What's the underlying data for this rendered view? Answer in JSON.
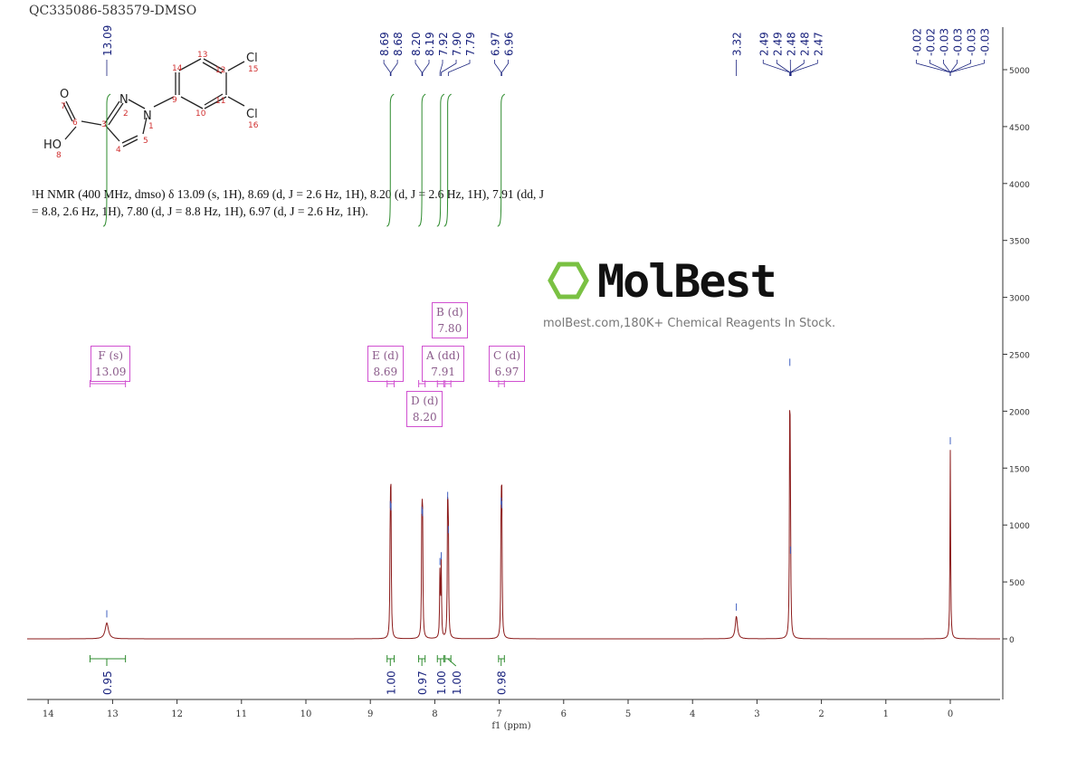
{
  "title": "QC335086-583579-DMSO",
  "description_line1": "¹H NMR (400 MHz, dmso) δ 13.09 (s, 1H), 8.69 (d, J = 2.6 Hz, 1H), 8.20 (d, J = 2.6 Hz, 1H), 7.91 (dd, J",
  "description_line2": "= 8.8, 2.6 Hz, 1H), 7.80 (d, J = 8.8 Hz, 1H), 6.97 (d, J = 2.6 Hz, 1H).",
  "watermark": {
    "brand": "MolBest",
    "tagline": "molBest.com,180K+ Chemical Reagents In Stock."
  },
  "molecule": {
    "atoms": [
      "O",
      "7",
      "6",
      "3",
      "N",
      "2",
      "N",
      "1",
      "4",
      "5",
      "HO",
      "8",
      "9",
      "14",
      "13",
      "12",
      "11",
      "10",
      "Cl",
      "15",
      "Cl",
      "16"
    ]
  },
  "multiplets": [
    {
      "label": "F (s)",
      "shift": "13.09"
    },
    {
      "label": "E (d)",
      "shift": "8.69"
    },
    {
      "label": "A (dd)",
      "shift": "7.91"
    },
    {
      "label": "B (d)",
      "shift": "7.80"
    },
    {
      "label": "C (d)",
      "shift": "6.97"
    },
    {
      "label": "D (d)",
      "shift": "8.20"
    }
  ],
  "colors": {
    "spectrum": "#8b1a1a",
    "integral": "#2e8b2e",
    "peak_label": "#1a237e",
    "multiplet": "#d050d0"
  },
  "chart_data": {
    "type": "line",
    "xlabel": "f1 (ppm)",
    "xlim": [
      14.3,
      -0.8
    ],
    "ylim": [
      -500,
      5400
    ],
    "x_ticks": [
      14,
      13,
      12,
      11,
      10,
      9,
      8,
      7,
      6,
      5,
      4,
      3,
      2,
      1,
      0
    ],
    "y_ticks": [
      0,
      500,
      1000,
      1500,
      2000,
      2500,
      3000,
      3500,
      4000,
      4500,
      5000
    ],
    "peaks": [
      {
        "ppm": 13.09,
        "intensity": 140,
        "width": 0.03
      },
      {
        "ppm": 8.69,
        "intensity": 1100
      },
      {
        "ppm": 8.68,
        "intensity": 1080
      },
      {
        "ppm": 8.2,
        "intensity": 1050
      },
      {
        "ppm": 8.19,
        "intensity": 1030
      },
      {
        "ppm": 7.92,
        "intensity": 600
      },
      {
        "ppm": 7.9,
        "intensity": 650
      },
      {
        "ppm": 7.8,
        "intensity": 1180
      },
      {
        "ppm": 7.79,
        "intensity": 880
      },
      {
        "ppm": 6.97,
        "intensity": 1130
      },
      {
        "ppm": 6.96,
        "intensity": 1100
      },
      {
        "ppm": 3.32,
        "intensity": 200,
        "width": 0.02
      },
      {
        "ppm": 2.49,
        "intensity": 2350
      },
      {
        "ppm": 2.48,
        "intensity": 700
      },
      {
        "ppm": 0.0,
        "intensity": 1660
      }
    ],
    "peak_label_groups": [
      [
        "13.09"
      ],
      [
        "8.69",
        "8.68"
      ],
      [
        "8.20",
        "8.19"
      ],
      [
        "7.92",
        "7.90",
        "7.79"
      ],
      [
        "6.97",
        "6.96"
      ],
      [
        "3.32"
      ],
      [
        "2.49",
        "2.49",
        "2.48",
        "2.48",
        "2.47"
      ],
      [
        "-0.02",
        "-0.02",
        "-0.03",
        "-0.03",
        "-0.03",
        "-0.03"
      ]
    ],
    "peak_label_ppm": [
      [
        13.09
      ],
      [
        8.69,
        8.68
      ],
      [
        8.2,
        8.19
      ],
      [
        7.92,
        7.9,
        7.79
      ],
      [
        6.97,
        6.96
      ],
      [
        3.32
      ],
      [
        2.49,
        2.49,
        2.48,
        2.48,
        2.47
      ],
      [
        0,
        0,
        0,
        0,
        0,
        0
      ]
    ],
    "integrals": [
      {
        "from": 13.35,
        "to": 12.8,
        "center": 13.09,
        "value": "0.95"
      },
      {
        "from": 8.74,
        "to": 8.63,
        "center": 8.69,
        "value": "1.00"
      },
      {
        "from": 8.25,
        "to": 8.15,
        "center": 8.2,
        "value": "0.97"
      },
      {
        "from": 7.96,
        "to": 7.86,
        "center": 7.91,
        "value": "1.00"
      },
      {
        "from": 7.84,
        "to": 7.75,
        "center": 7.8,
        "value": "1.00"
      },
      {
        "from": 7.01,
        "to": 6.92,
        "center": 6.97,
        "value": "0.98"
      }
    ]
  }
}
